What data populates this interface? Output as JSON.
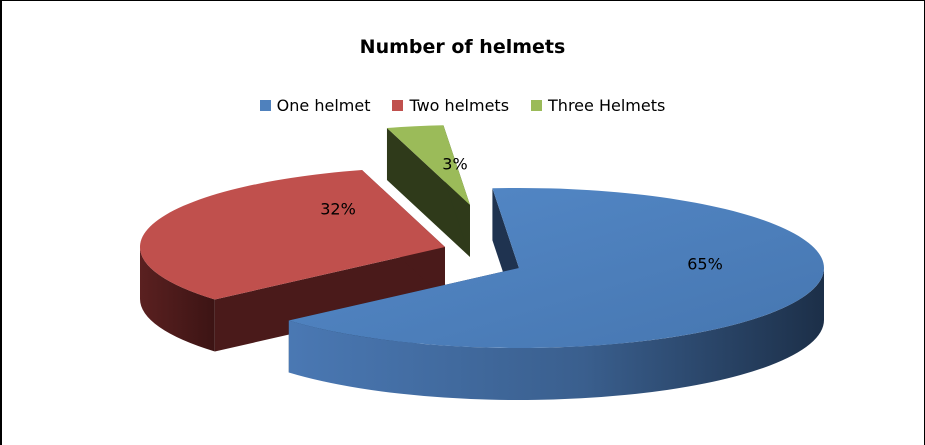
{
  "chart_data": {
    "type": "pie",
    "title": "Number of helmets",
    "legend_position": "top",
    "categories": [
      "One helmet",
      "Two helmets",
      "Three Helmets"
    ],
    "values": [
      65,
      32,
      3
    ],
    "labels": [
      "65%",
      "32%",
      "3%"
    ],
    "colors": [
      "#4f81bd",
      "#c0504d",
      "#9bbb59"
    ],
    "style": "3d-exploded"
  }
}
